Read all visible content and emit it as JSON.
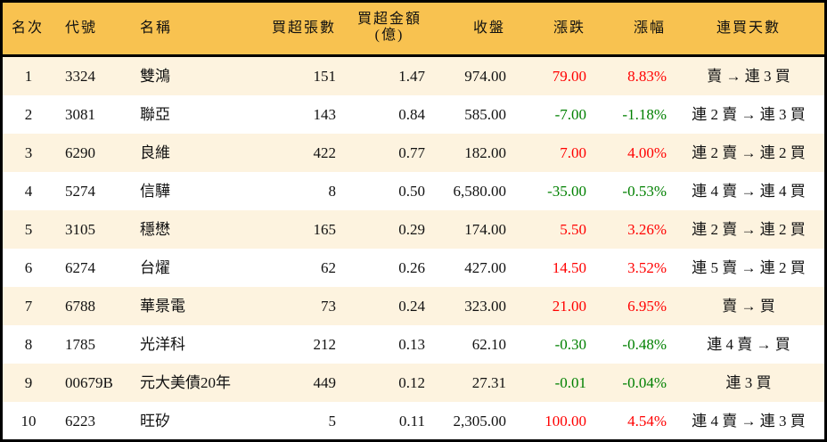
{
  "colors": {
    "header_bg": "#F8C250",
    "alt_row_bg": "#FDF3DF",
    "up": "#FF0000",
    "down": "#008000"
  },
  "headers": {
    "rank": "名次",
    "code": "代號",
    "name": "名稱",
    "net_buy_lots": "買超張數",
    "net_buy_amount_line1": "買超金額",
    "net_buy_amount_line2": "(億)",
    "close": "收盤",
    "change": "漲跌",
    "change_pct": "漲幅",
    "consecutive_days": "連買天數"
  },
  "rows": [
    {
      "rank": "1",
      "code": "3324",
      "name": "雙鴻",
      "lots": "151",
      "amount": "1.47",
      "close": "974.00",
      "change": "79.00",
      "pct": "8.83%",
      "dir": "up",
      "days": "賣 → 連 3 買"
    },
    {
      "rank": "2",
      "code": "3081",
      "name": "聯亞",
      "lots": "143",
      "amount": "0.84",
      "close": "585.00",
      "change": "-7.00",
      "pct": "-1.18%",
      "dir": "down",
      "days": "連 2 賣 → 連 3 買"
    },
    {
      "rank": "3",
      "code": "6290",
      "name": "良維",
      "lots": "422",
      "amount": "0.77",
      "close": "182.00",
      "change": "7.00",
      "pct": "4.00%",
      "dir": "up",
      "days": "連 2 賣 → 連 2 買"
    },
    {
      "rank": "4",
      "code": "5274",
      "name": "信驊",
      "lots": "8",
      "amount": "0.50",
      "close": "6,580.00",
      "change": "-35.00",
      "pct": "-0.53%",
      "dir": "down",
      "days": "連 4 賣 → 連 4 買"
    },
    {
      "rank": "5",
      "code": "3105",
      "name": "穩懋",
      "lots": "165",
      "amount": "0.29",
      "close": "174.00",
      "change": "5.50",
      "pct": "3.26%",
      "dir": "up",
      "days": "連 2 賣 → 連 2 買"
    },
    {
      "rank": "6",
      "code": "6274",
      "name": "台燿",
      "lots": "62",
      "amount": "0.26",
      "close": "427.00",
      "change": "14.50",
      "pct": "3.52%",
      "dir": "up",
      "days": "連 5 賣 → 連 2 買"
    },
    {
      "rank": "7",
      "code": "6788",
      "name": "華景電",
      "lots": "73",
      "amount": "0.24",
      "close": "323.00",
      "change": "21.00",
      "pct": "6.95%",
      "dir": "up",
      "days": "賣 → 買"
    },
    {
      "rank": "8",
      "code": "1785",
      "name": "光洋科",
      "lots": "212",
      "amount": "0.13",
      "close": "62.10",
      "change": "-0.30",
      "pct": "-0.48%",
      "dir": "down",
      "days": "連 4 賣 → 買"
    },
    {
      "rank": "9",
      "code": "00679B",
      "name": "元大美債20年",
      "lots": "449",
      "amount": "0.12",
      "close": "27.31",
      "change": "-0.01",
      "pct": "-0.04%",
      "dir": "down",
      "days": "連 3 買"
    },
    {
      "rank": "10",
      "code": "6223",
      "name": "旺矽",
      "lots": "5",
      "amount": "0.11",
      "close": "2,305.00",
      "change": "100.00",
      "pct": "4.54%",
      "dir": "up",
      "days": "連 4 賣 → 連 3 買"
    }
  ]
}
